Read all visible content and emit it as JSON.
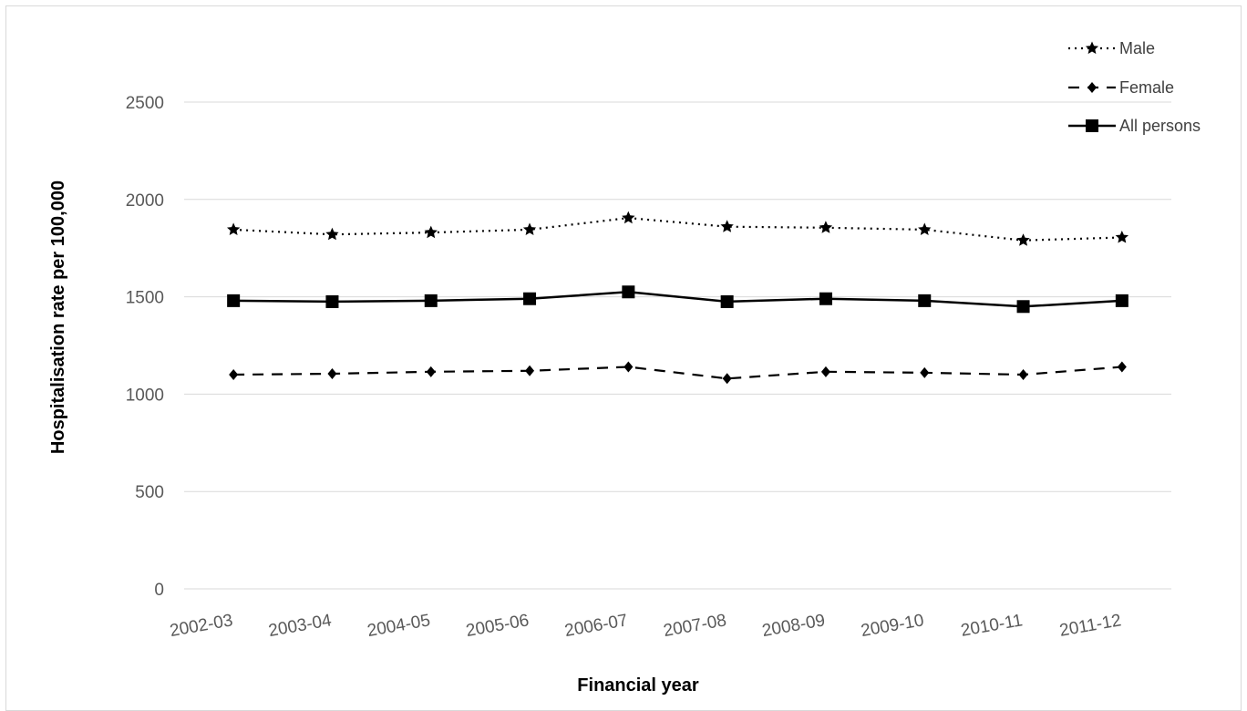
{
  "chart_data": {
    "type": "line",
    "title": "",
    "xlabel": "Financial year",
    "ylabel": "Hospitalisation rate per 100,000",
    "categories": [
      "2002-03",
      "2003-04",
      "2004-05",
      "2005-06",
      "2006-07",
      "2007-08",
      "2008-09",
      "2009-10",
      "2010-11",
      "2011-12"
    ],
    "y_ticks": [
      0,
      500,
      1000,
      1500,
      2000,
      2500
    ],
    "ylim": [
      0,
      2500
    ],
    "grid": true,
    "legend_position": "top-right",
    "series": [
      {
        "name": "Male",
        "line_style": "dotted",
        "marker": "star",
        "color": "#000000",
        "values": [
          1845,
          1820,
          1830,
          1845,
          1905,
          1860,
          1855,
          1845,
          1790,
          1805
        ]
      },
      {
        "name": "Female",
        "line_style": "dashed",
        "marker": "diamond",
        "color": "#000000",
        "values": [
          1100,
          1105,
          1115,
          1120,
          1140,
          1080,
          1115,
          1110,
          1100,
          1140
        ]
      },
      {
        "name": "All persons",
        "line_style": "solid",
        "marker": "square",
        "color": "#000000",
        "values": [
          1480,
          1475,
          1480,
          1490,
          1525,
          1475,
          1490,
          1480,
          1450,
          1480
        ]
      }
    ]
  }
}
